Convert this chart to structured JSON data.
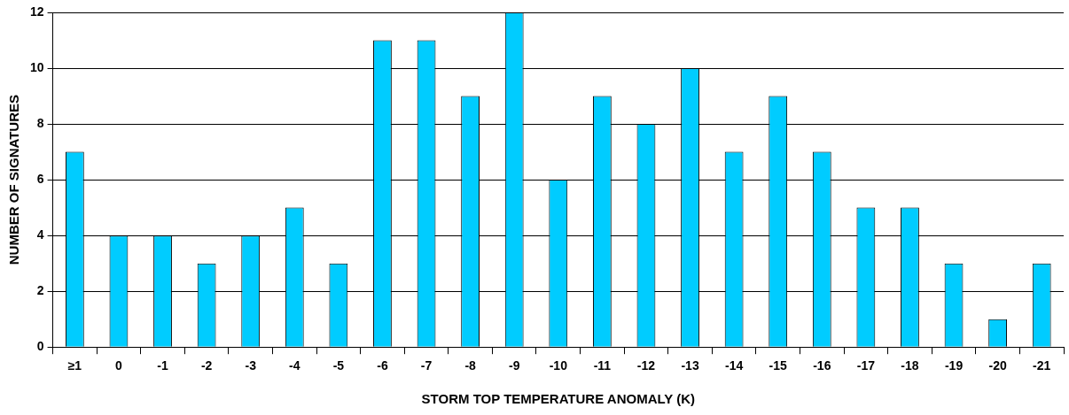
{
  "chart_data": {
    "type": "bar",
    "xlabel": "STORM TOP TEMPERATURE ANOMALY (K)",
    "ylabel": "NUMBER OF SIGNATURES",
    "categories": [
      "≥1",
      "0",
      "-1",
      "-2",
      "-3",
      "-4",
      "-5",
      "-6",
      "-7",
      "-8",
      "-9",
      "-10",
      "-11",
      "-12",
      "-13",
      "-14",
      "-15",
      "-16",
      "-17",
      "-18",
      "-19",
      "-20",
      "-21"
    ],
    "values": [
      7,
      4,
      4,
      3,
      4,
      5,
      3,
      11,
      11,
      9,
      12,
      6,
      9,
      8,
      10,
      7,
      9,
      7,
      5,
      5,
      3,
      1,
      3
    ],
    "color": "#00ccff",
    "ylim": [
      0,
      12
    ],
    "yticks": [
      0,
      2,
      4,
      6,
      8,
      10,
      12
    ],
    "grid": "y",
    "legend": false
  }
}
